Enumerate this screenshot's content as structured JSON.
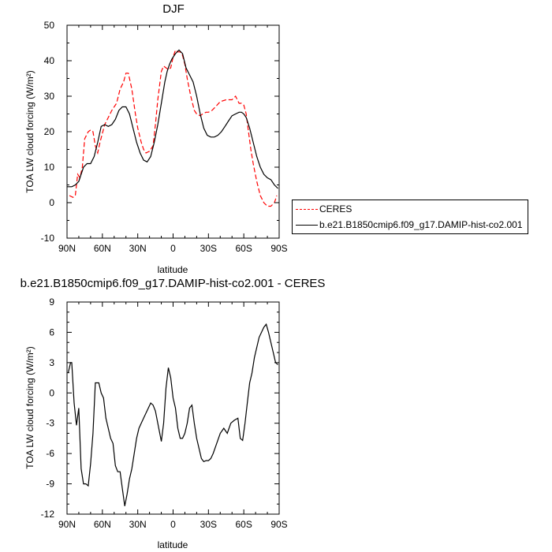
{
  "chart_data": [
    {
      "type": "line",
      "title": "DJF",
      "xlabel": "latitude",
      "ylabel": "TOA LW cloud forcing (W/m²)",
      "xlim": [
        90,
        -90
      ],
      "ylim": [
        -10,
        50
      ],
      "xticks": [
        90,
        60,
        30,
        0,
        -30,
        -60,
        -90
      ],
      "xtick_labels": [
        "90N",
        "60N",
        "30N",
        "0",
        "30S",
        "60S",
        "90S"
      ],
      "yticks": [
        -10,
        0,
        10,
        20,
        30,
        40,
        50
      ],
      "ytick_labels": [
        "-10",
        "0",
        "10",
        "20",
        "30",
        "40",
        "50"
      ],
      "legend": {
        "placement": "right",
        "entries": [
          "CERES",
          "b.e21.B1850cmip6.f09_g17.DAMIP-hist-co2.001"
        ]
      },
      "series": [
        {
          "name": "CERES",
          "color": "#ff0000",
          "dash": "dashed",
          "x": [
            88,
            85,
            83,
            81,
            79,
            77,
            75,
            72,
            70,
            68,
            66,
            64,
            62,
            58,
            55,
            52,
            48,
            45,
            42,
            40,
            38,
            35,
            32,
            30,
            27,
            25,
            23,
            20,
            17,
            15,
            13,
            10,
            8,
            6,
            4,
            2,
            0,
            -2,
            -4,
            -6,
            -8,
            -10,
            -12,
            -15,
            -18,
            -20,
            -23,
            -25,
            -28,
            -30,
            -33,
            -36,
            -40,
            -45,
            -50,
            -53,
            -56,
            -58,
            -60,
            -62,
            -64,
            -66,
            -68,
            -71,
            -74,
            -77,
            -80,
            -83,
            -86,
            -88
          ],
          "y": [
            2,
            1.5,
            2,
            8,
            7,
            10,
            18,
            20,
            20.5,
            20,
            16,
            14,
            17,
            22,
            24,
            26,
            28,
            32,
            34,
            36.5,
            36.5,
            32,
            25,
            21,
            17,
            15,
            14,
            14.5,
            16,
            22,
            29,
            37,
            38.5,
            38,
            37.5,
            38,
            41,
            43,
            42.5,
            42.5,
            41.5,
            39,
            35,
            30,
            26,
            25,
            24.5,
            25,
            25.5,
            25.5,
            26,
            27,
            28.5,
            29,
            29,
            30,
            28,
            28,
            27.5,
            25,
            20,
            15,
            11,
            6,
            2,
            0,
            -1,
            -1,
            0,
            2
          ]
        },
        {
          "name": "b.e21.B1850cmip6.f09_g17.DAMIP-hist-co2.001",
          "color": "#000000",
          "dash": "solid",
          "x": [
            90,
            86,
            83,
            80,
            78,
            76,
            73,
            70,
            67,
            64,
            61,
            58,
            55,
            52,
            49,
            46,
            43,
            40,
            37,
            34,
            31,
            28,
            25,
            22,
            19,
            16,
            13,
            10,
            7,
            5,
            3,
            1,
            -2,
            -5,
            -8,
            -11,
            -14,
            -17,
            -20,
            -23,
            -26,
            -29,
            -32,
            -35,
            -38,
            -41,
            -44,
            -47,
            -50,
            -53,
            -56,
            -58,
            -60,
            -62,
            -65,
            -68,
            -71,
            -74,
            -77,
            -80,
            -83,
            -86,
            -89
          ],
          "y": [
            4.5,
            4.5,
            5,
            6,
            8,
            10,
            11,
            11,
            13,
            17,
            21.5,
            22,
            21.5,
            22,
            23.5,
            26,
            27,
            27,
            25,
            21,
            17,
            14,
            12,
            11.5,
            13,
            17,
            22,
            28,
            34,
            37,
            39,
            40.5,
            42,
            43,
            42,
            38,
            36,
            34,
            30,
            25,
            21,
            19,
            18.5,
            18.5,
            19,
            20,
            21.5,
            23,
            24.5,
            25,
            25.5,
            25.5,
            25,
            24,
            21,
            17,
            13,
            10,
            8,
            7,
            6.5,
            5,
            4
          ]
        }
      ]
    },
    {
      "type": "line",
      "title": "b.e21.B1850cmip6.f09_g17.DAMIP-hist-co2.001 - CERES",
      "xlabel": "latitude",
      "ylabel": "TOA LW cloud forcing (W/m²)",
      "xlim": [
        90,
        -90
      ],
      "ylim": [
        -12,
        9
      ],
      "xticks": [
        90,
        60,
        30,
        0,
        -30,
        -60,
        -90
      ],
      "xtick_labels": [
        "90N",
        "60N",
        "30N",
        "0",
        "30S",
        "60S",
        "90S"
      ],
      "yticks": [
        -12,
        -9,
        -6,
        -3,
        0,
        3,
        6,
        9
      ],
      "ytick_labels": [
        "-12",
        "-9",
        "-6",
        "-3",
        "0",
        "3",
        "6",
        "9"
      ],
      "series": [
        {
          "color": "#000000",
          "dash": "solid",
          "x": [
            89,
            87,
            86,
            84,
            82,
            80,
            78,
            76,
            74,
            72,
            70,
            68,
            66,
            63,
            61,
            59,
            57,
            55,
            53,
            51,
            49,
            47,
            45,
            43,
            41,
            39,
            37,
            35,
            33,
            31,
            29,
            27,
            25,
            23,
            21,
            19,
            17,
            15,
            13,
            10,
            8,
            6,
            4,
            2,
            0,
            -2,
            -4,
            -6,
            -8,
            -10,
            -12,
            -14,
            -16,
            -18,
            -20,
            -22,
            -24,
            -26,
            -28,
            -30,
            -32,
            -34,
            -37,
            -40,
            -43,
            -46,
            -49,
            -52,
            -55,
            -57,
            -59,
            -61,
            -63,
            -65,
            -67,
            -69,
            -71,
            -73,
            -75,
            -77,
            -79,
            -81,
            -83,
            -85,
            -87,
            -89
          ],
          "y": [
            2,
            3,
            3,
            -1,
            -3.2,
            -1.5,
            -7.5,
            -9,
            -9,
            -9.2,
            -7,
            -4,
            1,
            1,
            0,
            -0.5,
            -2.5,
            -3.5,
            -4.5,
            -5,
            -7.2,
            -7.8,
            -7.8,
            -9.5,
            -11.2,
            -10,
            -8.5,
            -7.5,
            -6,
            -4.5,
            -3.5,
            -3,
            -2.5,
            -2,
            -1.5,
            -1,
            -1.2,
            -1.8,
            -3,
            -4.8,
            -3,
            0.5,
            2.5,
            1.5,
            -0.5,
            -1.5,
            -3.5,
            -4.5,
            -4.5,
            -4,
            -3,
            -1.5,
            -1.2,
            -3,
            -4.5,
            -5.5,
            -6.5,
            -6.8,
            -6.7,
            -6.7,
            -6.5,
            -6,
            -5,
            -4,
            -3.5,
            -4,
            -3,
            -2.7,
            -2.5,
            -4.5,
            -4.7,
            -3,
            -1,
            1,
            2,
            3.5,
            4.5,
            5.5,
            6,
            6.5,
            6.8,
            6,
            5,
            4,
            3,
            2.8
          ]
        }
      ]
    }
  ]
}
